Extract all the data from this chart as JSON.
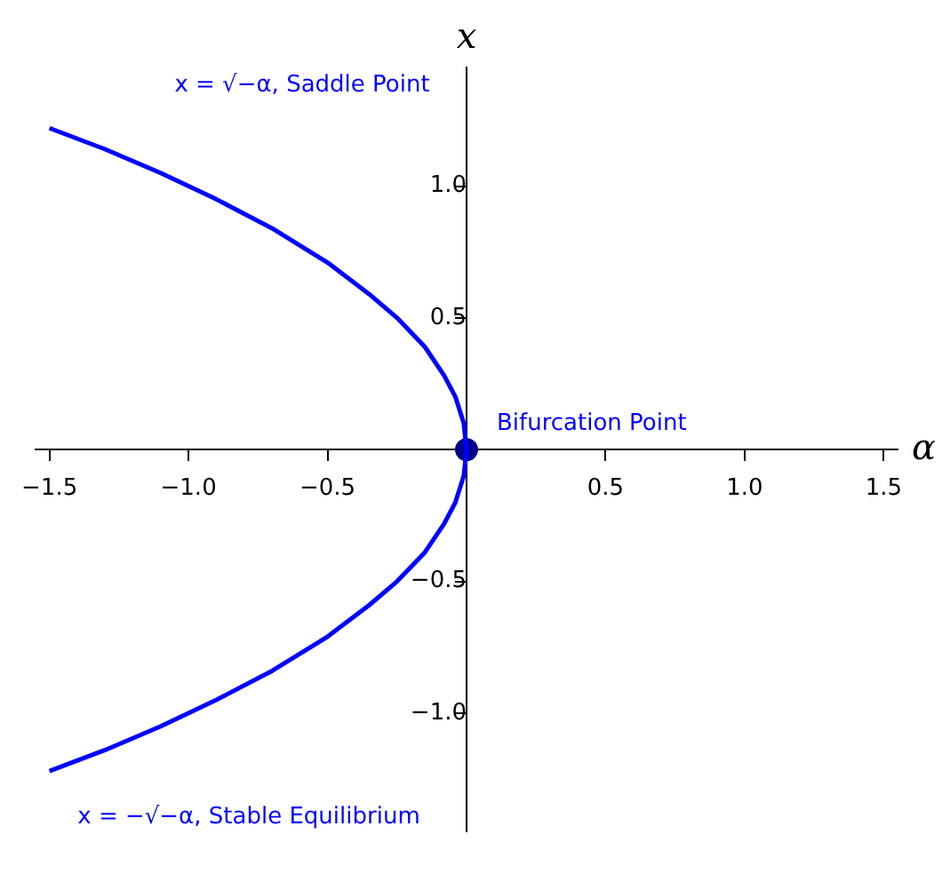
{
  "chart_data": {
    "type": "line",
    "xlabel": "α",
    "ylabel": "x",
    "series": [
      {
        "type": "line",
        "color": "#0000ff",
        "x": [
          -1.5,
          -1.3,
          -1.1,
          -0.9,
          -0.7,
          -0.5,
          -0.35,
          -0.25,
          -0.15,
          -0.08,
          -0.04,
          -0.01,
          0
        ],
        "values": [
          1.22,
          1.14,
          1.05,
          0.95,
          0.84,
          0.71,
          0.59,
          0.5,
          0.39,
          0.28,
          0.2,
          0.1,
          0
        ]
      },
      {
        "type": "line",
        "color": "#0000ff",
        "x": [
          -1.5,
          -1.3,
          -1.1,
          -0.9,
          -0.7,
          -0.5,
          -0.35,
          -0.25,
          -0.15,
          -0.08,
          -0.04,
          -0.01,
          0
        ],
        "values": [
          -1.22,
          -1.14,
          -1.05,
          -0.95,
          -0.84,
          -0.71,
          -0.59,
          -0.5,
          -0.39,
          -0.28,
          -0.2,
          -0.1,
          0
        ]
      },
      {
        "type": "scatter",
        "color": "#00008b",
        "marker": "circle",
        "x": [
          0
        ],
        "values": [
          0
        ]
      }
    ],
    "annotations": [
      "x = √−α, Saddle Point",
      "x = −√−α, Stable Equilibrium",
      {
        "text": "Bifurcation Point",
        "x": 0,
        "y": 0
      }
    ],
    "xlim": [
      -1.55,
      1.55
    ],
    "ylim": [
      -1.45,
      1.45
    ],
    "xticks": [
      {
        "value": -1.5,
        "label": "−1.5"
      },
      {
        "value": -1,
        "label": "−1.0"
      },
      {
        "value": -0.5,
        "label": "−0.5"
      },
      {
        "value": 0.5,
        "label": "0.5"
      },
      {
        "value": 1,
        "label": "1.0"
      },
      {
        "value": 1.5,
        "label": "1.5"
      }
    ],
    "yticks": [
      {
        "value": -1,
        "label": "−1.0"
      },
      {
        "value": -0.5,
        "label": "−0.5"
      },
      {
        "value": 0.5,
        "label": "0.5"
      },
      {
        "value": 1,
        "label": "1.0"
      }
    ],
    "grid": false,
    "legend": false,
    "line_style": "solid"
  }
}
